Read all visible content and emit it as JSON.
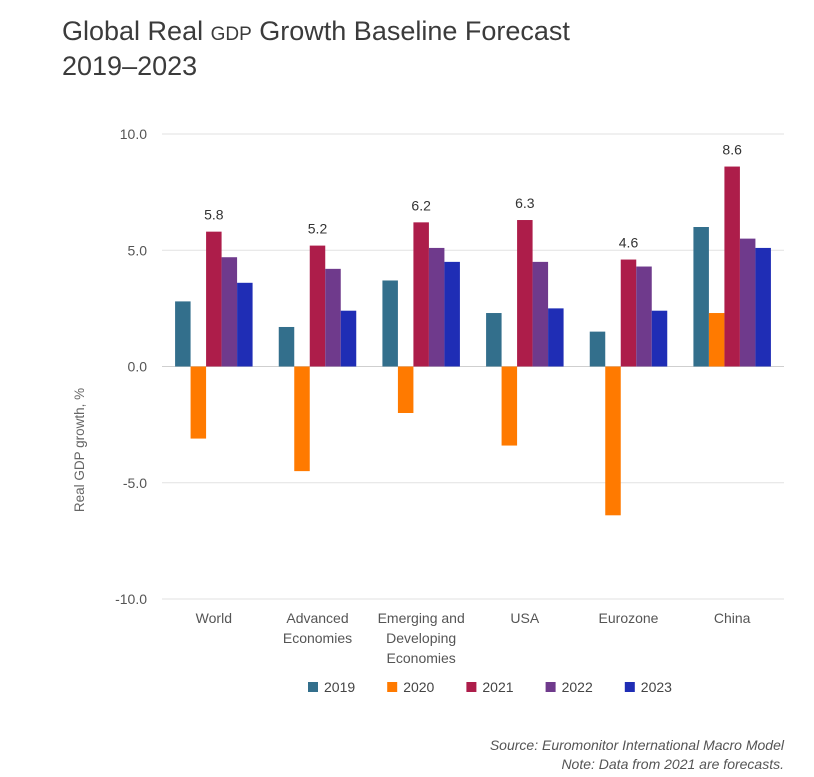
{
  "title": {
    "part1": "Global Real ",
    "gdp": "GDP",
    "part2": " Growth Baseline Forecast",
    "line2": "2019–2023"
  },
  "footer": {
    "source": "Source: Euromonitor International Macro Model",
    "note": "Note: Data from 2021 are forecasts."
  },
  "chart_data": {
    "type": "bar",
    "ylabel": "Real GDP growth, %",
    "ylim": [
      -10,
      10
    ],
    "yticks": [
      10,
      5,
      0,
      -5,
      -10
    ],
    "ytick_labels": [
      "10.0",
      "5.0",
      "0.0",
      "-5.0",
      "-10.0"
    ],
    "grid": true,
    "legend_position": "bottom",
    "categories": [
      [
        "World"
      ],
      [
        "Advanced",
        "Economies"
      ],
      [
        "Emerging and",
        "Developing",
        "Economies"
      ],
      [
        "USA"
      ],
      [
        "Eurozone"
      ],
      [
        "China"
      ]
    ],
    "series": [
      {
        "name": "2019",
        "color": "#336f8c",
        "values": [
          2.8,
          1.7,
          3.7,
          2.3,
          1.5,
          6.0
        ]
      },
      {
        "name": "2020",
        "color": "#ff7a00",
        "values": [
          -3.1,
          -4.5,
          -2.0,
          -3.4,
          -6.4,
          2.3
        ]
      },
      {
        "name": "2021",
        "color": "#ad1d4a",
        "values": [
          5.8,
          5.2,
          6.2,
          6.3,
          4.6,
          8.6
        ]
      },
      {
        "name": "2022",
        "color": "#6f3a8c",
        "values": [
          4.7,
          4.2,
          5.1,
          4.5,
          4.3,
          5.5
        ]
      },
      {
        "name": "2023",
        "color": "#1f2db5",
        "values": [
          3.6,
          2.4,
          4.5,
          2.5,
          2.4,
          5.1
        ]
      }
    ],
    "data_labels": {
      "series": "2021",
      "labels": [
        "5.8",
        "5.2",
        "6.2",
        "6.3",
        "4.6",
        "8.6"
      ]
    }
  }
}
